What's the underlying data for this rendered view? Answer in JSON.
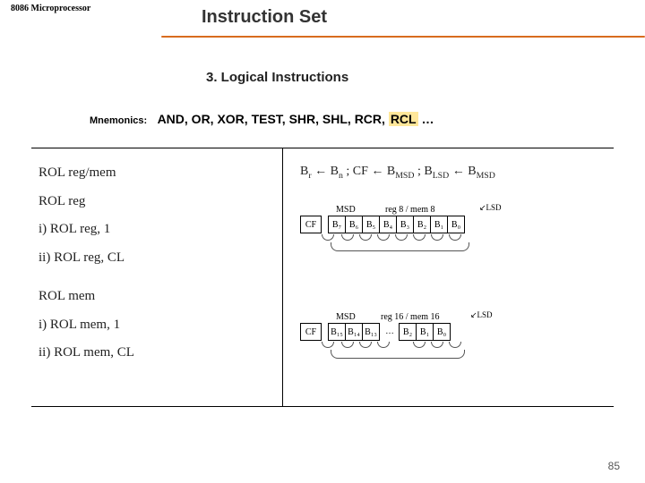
{
  "header": {
    "chip_label": "8086 Microprocessor",
    "title": "Instruction Set",
    "underline_color": "#d86c1f"
  },
  "subtitle": "3. Logical Instructions",
  "mnemonics": {
    "label": "Mnemonics:",
    "text_before": "AND, OR, XOR, TEST, SHR, SHL, RCR, ",
    "highlight": "RCL",
    "text_after": " …"
  },
  "left_column": {
    "l1": "ROL reg/mem",
    "l2": "ROL reg",
    "l3": "i) ROL reg, 1",
    "l4": "ii) ROL reg, CL",
    "l5": "ROL mem",
    "l6": "i) ROL mem, 1",
    "l7": "ii) ROL mem, CL"
  },
  "formula": {
    "html": "B<sub>r</sub> ← B<sub>n</sub> ; CF ← B<sub>MSD</sub> ; B<sub>LSD</sub> ← B<sub>MSD</sub>"
  },
  "diagram8": {
    "msd": "MSD",
    "mid": "reg 8 / mem 8",
    "lsd": "LSD",
    "cf": "CF",
    "bits": [
      "B₇",
      "B₆",
      "B₅",
      "B₄",
      "B₃",
      "B₂",
      "B₁",
      "B₀"
    ]
  },
  "diagram16": {
    "msd": "MSD",
    "mid": "reg 16 / mem 16",
    "lsd": "LSD",
    "cf": "CF",
    "bits_left": [
      "B₁₅",
      "B₁₄",
      "B₁₃"
    ],
    "bits_right": [
      "B₂",
      "B₁",
      "B₀"
    ]
  },
  "page_number": "85",
  "colors": {
    "bg": "#ffffff",
    "text": "#222222",
    "highlight_bg": "#ffe79a"
  }
}
